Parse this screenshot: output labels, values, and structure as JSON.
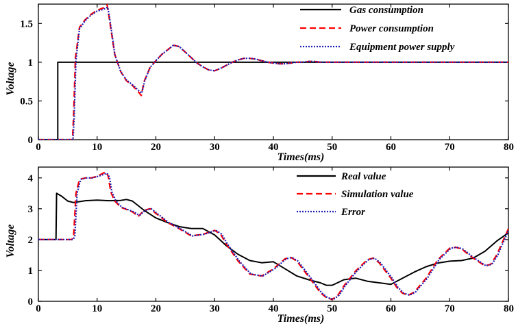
{
  "chart_data": [
    {
      "type": "line",
      "title": "",
      "xlabel": "Times(ms)",
      "ylabel": "Voltage",
      "xlim": [
        0,
        80
      ],
      "ylim": [
        0,
        1.75
      ],
      "xticks": [
        0,
        10,
        20,
        30,
        40,
        50,
        60,
        70,
        80
      ],
      "xtick_labels": [
        "0",
        "10",
        "20",
        "30",
        "40",
        "50",
        "60",
        "70",
        "80"
      ],
      "yticks": [
        0,
        0.5,
        1,
        1.5
      ],
      "ytick_labels": [
        "0",
        "0.5",
        "1",
        "1.5"
      ],
      "grid": false,
      "legend_position": "top-right",
      "series": [
        {
          "name": "Gas consumption",
          "color": "#000000",
          "style": "solid",
          "x": [
            0,
            3.3,
            3.3,
            80
          ],
          "y": [
            0,
            0,
            1,
            1
          ]
        },
        {
          "name": "Power consumption",
          "color": "#ff0000",
          "style": "dashed",
          "x": [
            0,
            5.8,
            6.0,
            6.3,
            7,
            8,
            9,
            10,
            11,
            11.7,
            12,
            12.5,
            13,
            14,
            15,
            16,
            17,
            17.5,
            18,
            19,
            20,
            21,
            22,
            23,
            24,
            25,
            26,
            27,
            28,
            29,
            30,
            31,
            32,
            33,
            34,
            35,
            36,
            37,
            38,
            39,
            40,
            41,
            42,
            43,
            44,
            45,
            46,
            47,
            48,
            50,
            55,
            60,
            65,
            70,
            75,
            80
          ],
          "y": [
            0,
            0,
            0.3,
            1.05,
            1.45,
            1.55,
            1.62,
            1.67,
            1.7,
            1.74,
            1.6,
            1.35,
            1.1,
            0.88,
            0.76,
            0.7,
            0.62,
            0.57,
            0.75,
            0.93,
            1.02,
            1.1,
            1.16,
            1.22,
            1.2,
            1.13,
            1.06,
            0.99,
            0.94,
            0.9,
            0.89,
            0.92,
            0.96,
            1.0,
            1.03,
            1.05,
            1.05,
            1.04,
            1.02,
            1.0,
            0.99,
            0.98,
            0.98,
            0.99,
            1.0,
            1.0,
            1.01,
            1.01,
            1.0,
            1.0,
            1.0,
            1.0,
            1.0,
            1.0,
            1.0,
            1.0
          ]
        },
        {
          "name": "Equipment power supply",
          "color": "#1c1cb4",
          "style": "dotted",
          "x": [
            0,
            5.9,
            6.1,
            6.4,
            7,
            8,
            9,
            10,
            11,
            11.8,
            12.1,
            12.6,
            13,
            14,
            15,
            16,
            17,
            17.6,
            18.1,
            19,
            20,
            21,
            22,
            23,
            24,
            25,
            26,
            27,
            28,
            29,
            30,
            31,
            32,
            33,
            34,
            35,
            36,
            37,
            38,
            39,
            40,
            41,
            42,
            43,
            44,
            45,
            46,
            47,
            48,
            50,
            55,
            60,
            65,
            70,
            75,
            80
          ],
          "y": [
            0,
            0,
            0.3,
            1.03,
            1.43,
            1.54,
            1.61,
            1.66,
            1.68,
            1.71,
            1.58,
            1.33,
            1.1,
            0.88,
            0.77,
            0.71,
            0.64,
            0.6,
            0.76,
            0.93,
            1.02,
            1.1,
            1.16,
            1.22,
            1.2,
            1.13,
            1.06,
            0.99,
            0.94,
            0.9,
            0.89,
            0.92,
            0.96,
            1.0,
            1.03,
            1.05,
            1.05,
            1.04,
            1.02,
            1.0,
            0.99,
            0.98,
            0.98,
            0.99,
            1.0,
            1.0,
            1.01,
            1.01,
            1.0,
            1.0,
            1.0,
            1.0,
            1.0,
            1.0,
            1.0,
            1.0
          ]
        }
      ]
    },
    {
      "type": "line",
      "title": "",
      "xlabel": "Times(ms)",
      "ylabel": "Voltage",
      "xlim": [
        0,
        80
      ],
      "ylim": [
        0,
        4.35
      ],
      "xticks": [
        0,
        10,
        20,
        30,
        40,
        50,
        60,
        70,
        80
      ],
      "xtick_labels": [
        "0",
        "10",
        "20",
        "30",
        "40",
        "50",
        "60",
        "70",
        "80"
      ],
      "yticks": [
        0,
        1,
        2,
        3,
        4
      ],
      "ytick_labels": [
        "0",
        "1",
        "2",
        "3",
        "4"
      ],
      "grid": false,
      "legend_position": "top-right",
      "series": [
        {
          "name": "Real value",
          "color": "#000000",
          "style": "solid",
          "x": [
            0,
            3,
            3.1,
            4,
            5,
            6,
            8,
            10,
            12,
            14,
            15,
            16,
            18,
            20,
            22,
            24,
            26,
            28,
            30,
            32,
            34,
            36,
            38,
            40,
            42,
            44,
            46,
            48,
            49,
            50,
            52,
            54,
            56,
            58,
            60,
            62,
            64,
            66,
            68,
            70,
            72,
            74,
            76,
            78,
            80
          ],
          "y": [
            2.0,
            2.0,
            3.5,
            3.4,
            3.25,
            3.2,
            3.26,
            3.28,
            3.26,
            3.27,
            3.3,
            3.25,
            2.95,
            2.7,
            2.55,
            2.42,
            2.36,
            2.36,
            2.15,
            1.8,
            1.52,
            1.32,
            1.25,
            1.28,
            1.05,
            0.82,
            0.7,
            0.6,
            0.52,
            0.52,
            0.7,
            0.75,
            0.65,
            0.6,
            0.55,
            0.75,
            0.95,
            1.12,
            1.24,
            1.3,
            1.32,
            1.4,
            1.62,
            1.95,
            2.22
          ]
        },
        {
          "name": "Simulation value",
          "color": "#ff0000",
          "style": "dashed",
          "x": [
            0,
            5.7,
            6.0,
            6.4,
            7,
            8,
            9,
            10,
            11,
            11.5,
            11.9,
            12.3,
            13,
            14,
            16,
            17,
            18,
            19,
            20,
            21,
            22,
            24,
            26,
            28,
            30,
            31,
            32,
            34,
            36,
            38,
            40,
            42,
            43,
            44,
            46,
            48,
            49,
            50,
            51,
            52,
            54,
            56,
            57,
            58,
            60,
            61,
            62,
            63,
            64,
            66,
            68,
            70,
            71,
            72,
            74,
            76,
            77,
            78,
            80
          ],
          "y": [
            2.0,
            2.0,
            2.1,
            3.5,
            3.95,
            4.0,
            4.0,
            4.05,
            4.15,
            4.2,
            4.05,
            3.55,
            3.25,
            3.05,
            2.9,
            2.75,
            2.95,
            3.0,
            2.85,
            2.7,
            2.55,
            2.35,
            2.12,
            2.17,
            2.3,
            2.18,
            1.85,
            1.3,
            0.88,
            0.82,
            1.05,
            1.38,
            1.42,
            1.3,
            0.8,
            0.28,
            0.12,
            0.06,
            0.2,
            0.5,
            0.98,
            1.35,
            1.4,
            1.25,
            0.75,
            0.45,
            0.26,
            0.2,
            0.3,
            0.75,
            1.35,
            1.72,
            1.75,
            1.7,
            1.4,
            1.15,
            1.2,
            1.5,
            2.35
          ]
        },
        {
          "name": "Error",
          "color": "#1c1cb4",
          "style": "dotted",
          "x": [
            0,
            5.9,
            6.2,
            6.6,
            7.2,
            8.2,
            9.2,
            10.2,
            11.2,
            11.7,
            12.1,
            12.5,
            13.2,
            14.2,
            16.2,
            17.2,
            18.2,
            19.2,
            20.2,
            21.2,
            22.2,
            24.2,
            26.2,
            28.2,
            30.2,
            31.2,
            32.2,
            34.2,
            36.2,
            38.2,
            40.2,
            42.2,
            43.2,
            44.2,
            46.2,
            48.2,
            49.2,
            50.2,
            51.2,
            52.2,
            54.2,
            56.2,
            57.2,
            58.2,
            60.2,
            61.2,
            62.2,
            63.2,
            64.2,
            66.2,
            68.2,
            70.2,
            71.2,
            72.2,
            74.2,
            76.2,
            77.2,
            78.2,
            80
          ],
          "y": [
            2.0,
            2.0,
            2.1,
            3.5,
            3.95,
            4.0,
            4.0,
            4.05,
            4.12,
            4.15,
            4.02,
            3.55,
            3.25,
            3.05,
            2.9,
            2.78,
            2.95,
            3.0,
            2.85,
            2.7,
            2.55,
            2.35,
            2.12,
            2.17,
            2.3,
            2.18,
            1.85,
            1.3,
            0.88,
            0.82,
            1.05,
            1.38,
            1.42,
            1.3,
            0.8,
            0.28,
            0.12,
            0.06,
            0.2,
            0.5,
            0.98,
            1.35,
            1.4,
            1.25,
            0.75,
            0.45,
            0.26,
            0.2,
            0.3,
            0.75,
            1.35,
            1.72,
            1.75,
            1.7,
            1.4,
            1.15,
            1.2,
            1.5,
            2.3
          ]
        }
      ]
    }
  ]
}
